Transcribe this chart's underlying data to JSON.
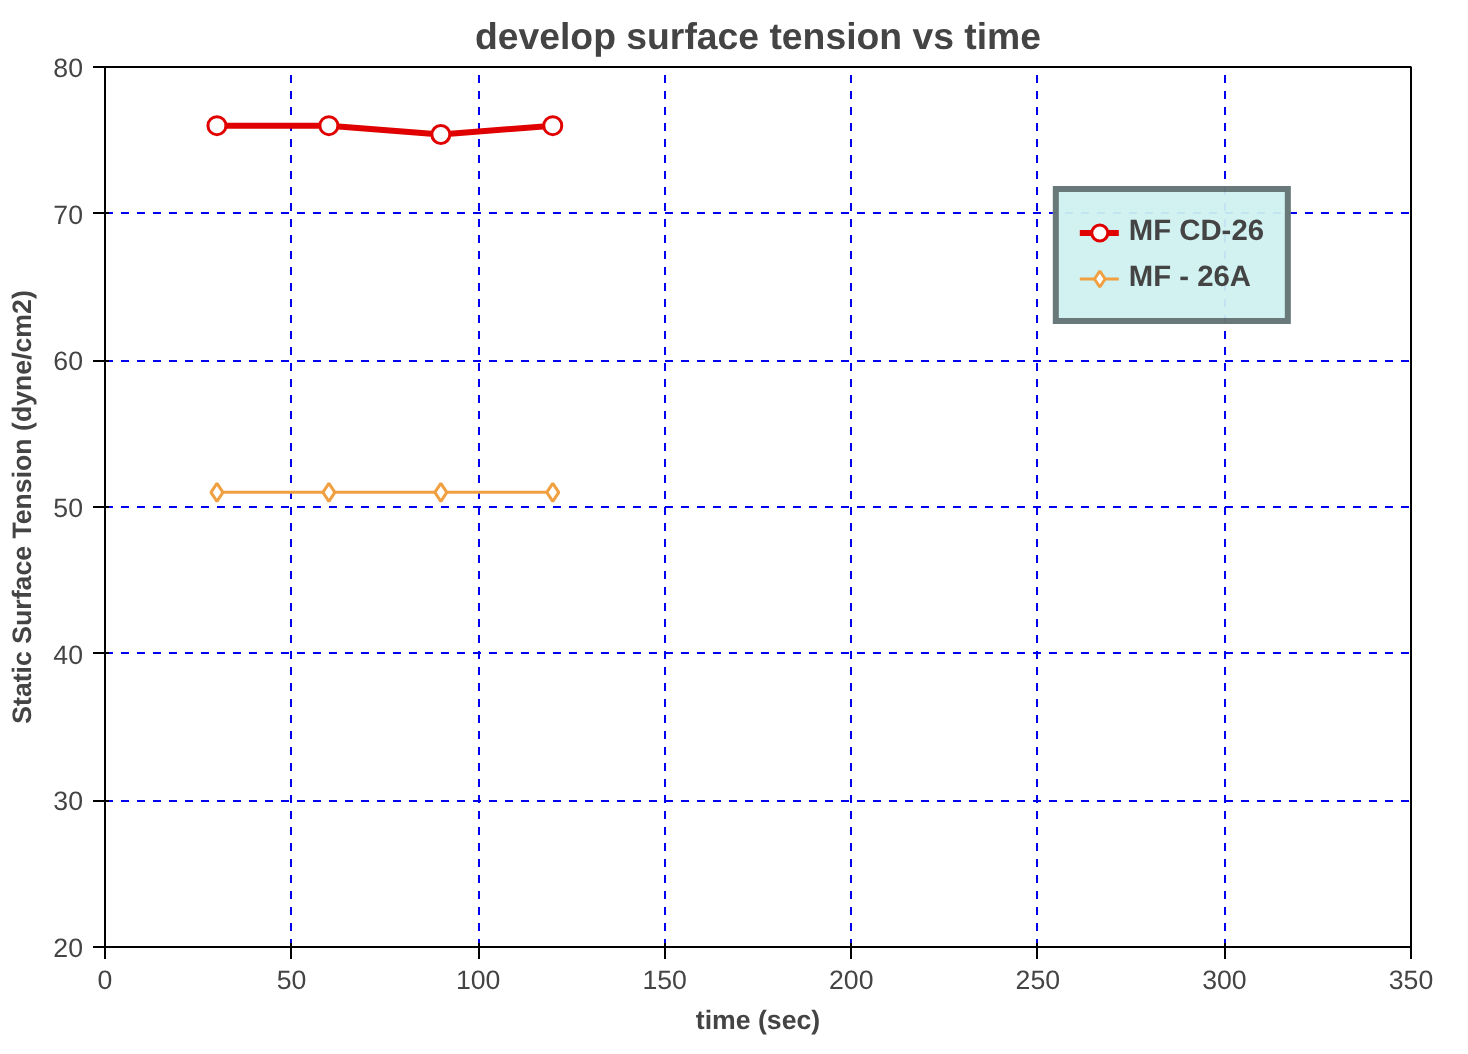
{
  "chart_data": {
    "type": "line",
    "title": "develop surface tension vs time",
    "xlabel": "time (sec)",
    "ylabel": "Static Surface Tension (dyne/cm2)",
    "x": [
      30,
      60,
      90,
      120
    ],
    "series": [
      {
        "name": "MF CD-26",
        "color": "#e00000",
        "marker": "circle",
        "values": [
          76,
          76,
          75.4,
          76
        ]
      },
      {
        "name": "MF - 26A",
        "color": "#f0a040",
        "marker": "diamond",
        "values": [
          51,
          51,
          51,
          51
        ]
      }
    ],
    "xlim": [
      0,
      350
    ],
    "xticks": [
      0,
      50,
      100,
      150,
      200,
      250,
      300,
      350
    ],
    "ylim": [
      20,
      80
    ],
    "yticks": [
      20,
      30,
      40,
      50,
      60,
      70,
      80
    ],
    "grid": true,
    "legend": "top right",
    "line_style": "solid"
  }
}
